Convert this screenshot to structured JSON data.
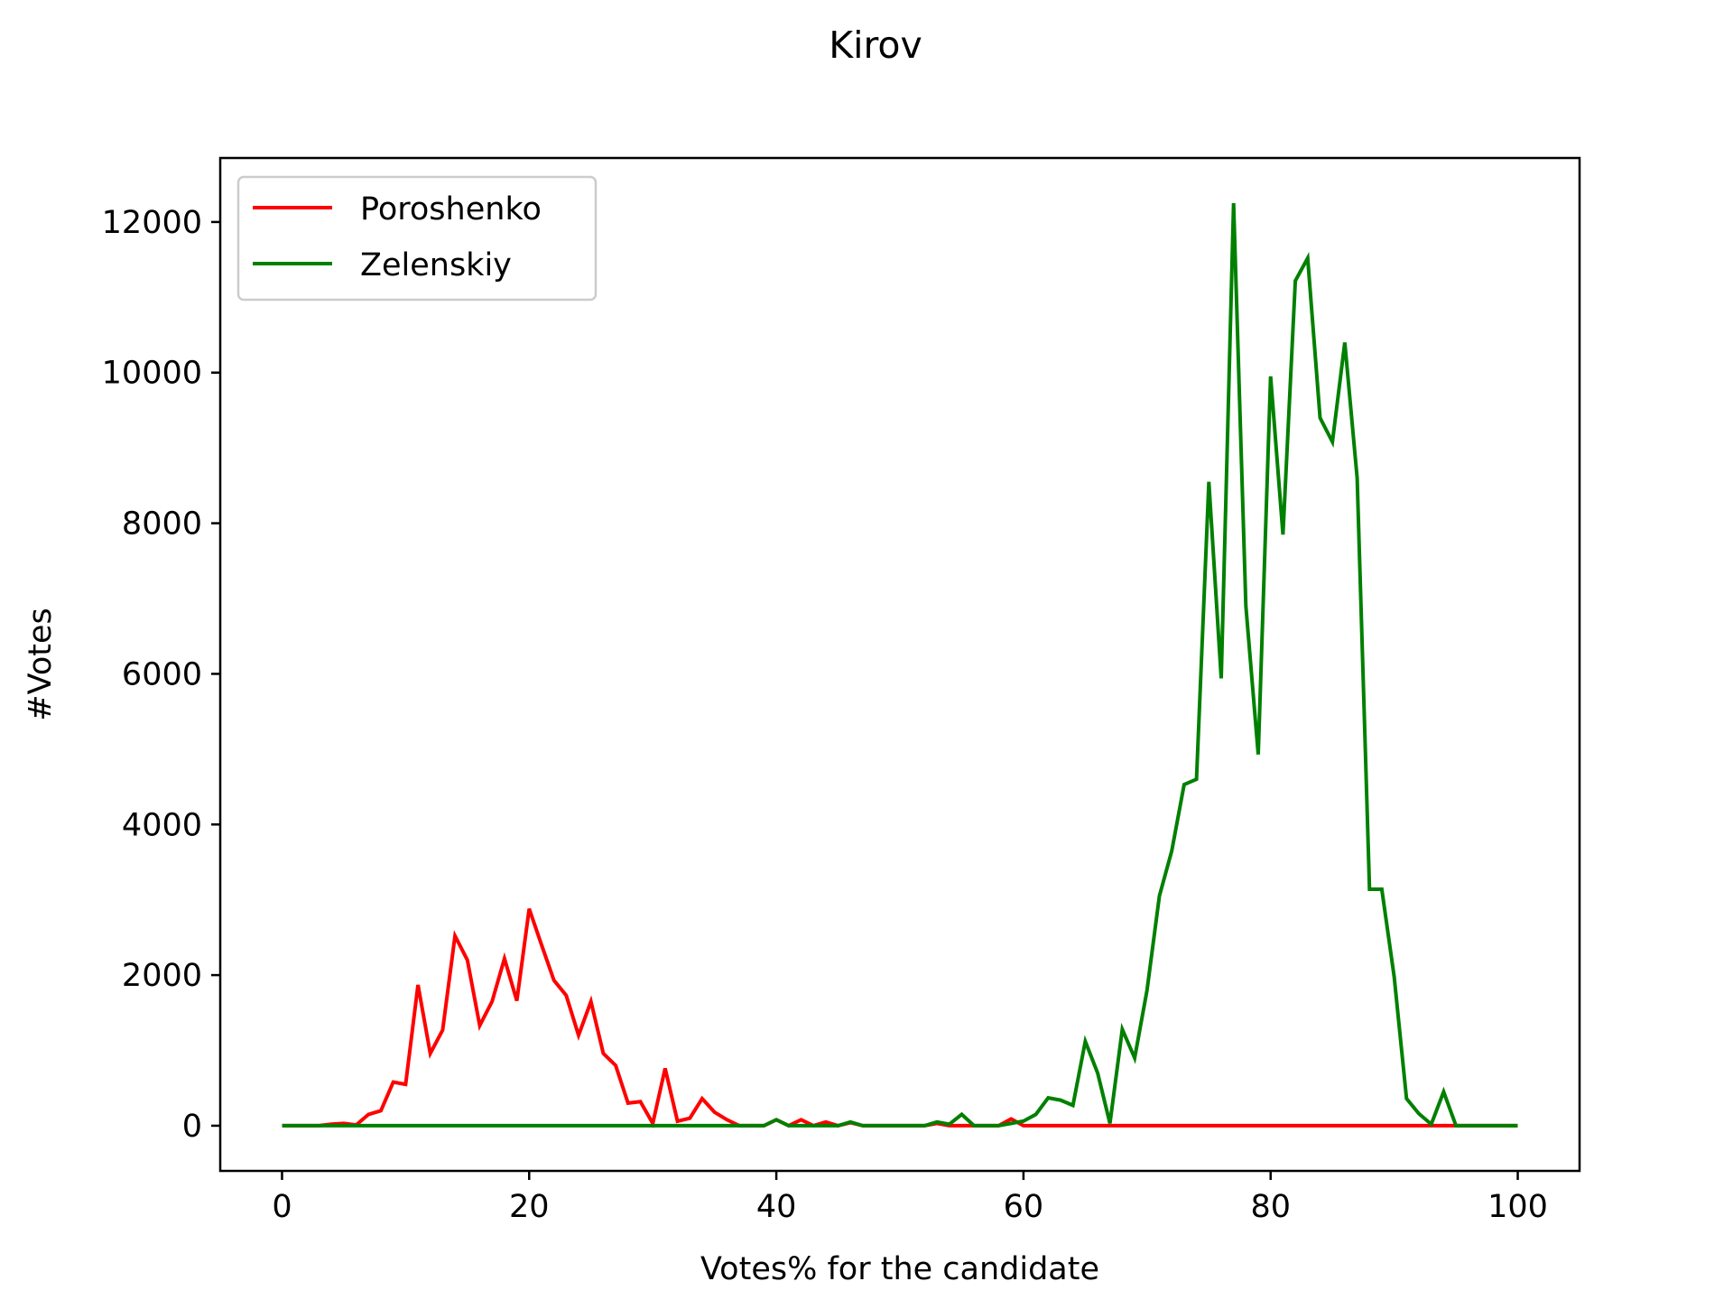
{
  "chart_data": {
    "type": "line",
    "title": "Kirov",
    "xlabel": "Votes% for the candidate",
    "ylabel": "#Votes",
    "xlim": [
      -5,
      105
    ],
    "ylim": [
      -600,
      12850
    ],
    "xticks": [
      0,
      20,
      40,
      60,
      80,
      100
    ],
    "yticks": [
      0,
      2000,
      4000,
      6000,
      8000,
      10000,
      12000
    ],
    "grid": false,
    "legend_position": "top-left",
    "x": [
      0,
      1,
      2,
      3,
      4,
      5,
      6,
      7,
      8,
      9,
      10,
      11,
      12,
      13,
      14,
      15,
      16,
      17,
      18,
      19,
      20,
      21,
      22,
      23,
      24,
      25,
      26,
      27,
      28,
      29,
      30,
      31,
      32,
      33,
      34,
      35,
      36,
      37,
      38,
      39,
      40,
      41,
      42,
      43,
      44,
      45,
      46,
      47,
      48,
      49,
      50,
      51,
      52,
      53,
      54,
      55,
      56,
      57,
      58,
      59,
      60,
      61,
      62,
      63,
      64,
      65,
      66,
      67,
      68,
      69,
      70,
      71,
      72,
      73,
      74,
      75,
      76,
      77,
      78,
      79,
      80,
      81,
      82,
      83,
      84,
      85,
      86,
      87,
      88,
      89,
      90,
      91,
      92,
      93,
      94,
      95,
      96,
      97,
      98,
      99,
      100
    ],
    "series": [
      {
        "name": "Poroshenko",
        "color": "#ff0000",
        "values": [
          0,
          0,
          0,
          0,
          20,
          30,
          10,
          150,
          200,
          580,
          550,
          1870,
          960,
          1270,
          2520,
          2200,
          1330,
          1650,
          2220,
          1660,
          2880,
          2400,
          1930,
          1730,
          1200,
          1650,
          960,
          800,
          300,
          320,
          30,
          760,
          60,
          100,
          360,
          180,
          80,
          0,
          0,
          0,
          80,
          0,
          80,
          0,
          50,
          0,
          40,
          0,
          0,
          0,
          0,
          0,
          0,
          30,
          0,
          0,
          0,
          0,
          0,
          90,
          0,
          0,
          0,
          0,
          0,
          0,
          0,
          0,
          0,
          0,
          0,
          0,
          0,
          0,
          0,
          0,
          0,
          0,
          0,
          0,
          0,
          0,
          0,
          0,
          0,
          0,
          0,
          0,
          0,
          0,
          0,
          0,
          0,
          0,
          0,
          0,
          0,
          0,
          0,
          0,
          0
        ]
      },
      {
        "name": "Zelenskiy",
        "color": "#008000",
        "values": [
          0,
          0,
          0,
          0,
          0,
          0,
          0,
          0,
          0,
          0,
          0,
          0,
          0,
          0,
          0,
          0,
          0,
          0,
          0,
          0,
          0,
          0,
          0,
          0,
          0,
          0,
          0,
          0,
          0,
          0,
          0,
          0,
          0,
          0,
          0,
          0,
          0,
          0,
          0,
          0,
          80,
          0,
          0,
          0,
          0,
          0,
          50,
          0,
          0,
          0,
          0,
          0,
          0,
          50,
          20,
          150,
          0,
          0,
          0,
          30,
          60,
          150,
          370,
          340,
          270,
          1120,
          700,
          30,
          1280,
          900,
          1800,
          3050,
          3650,
          4530,
          4600,
          8550,
          5940,
          12250,
          6900,
          4930,
          9950,
          7850,
          11220,
          11520,
          9400,
          9080,
          10400,
          8600,
          3140,
          3140,
          1980,
          360,
          160,
          20,
          450,
          0,
          0,
          0,
          0,
          0,
          0
        ]
      }
    ]
  }
}
